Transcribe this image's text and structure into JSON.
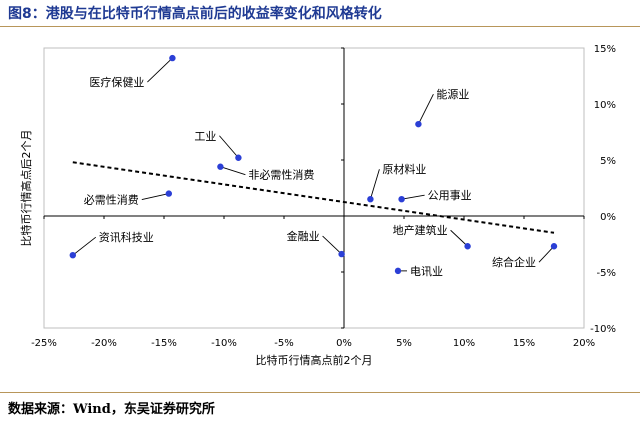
{
  "title": "图8：港股与在比特币行情高点前后的收益率变化和风格转化",
  "source": "数据来源：Wind，东吴证券研究所",
  "chart_data": {
    "type": "scatter",
    "xlabel": "比特币行情高点前2个月",
    "ylabel": "比特币行情高点后2个月",
    "xlim": [
      -0.25,
      0.2
    ],
    "ylim": [
      -0.1,
      0.15
    ],
    "x_ticks": [
      "-25%",
      "-20%",
      "-15%",
      "-10%",
      "-5%",
      "0%",
      "5%",
      "10%",
      "15%",
      "20%"
    ],
    "y_ticks": [
      "15%",
      "10%",
      "5%",
      "0%",
      "-5%",
      "-10%"
    ],
    "series_color": "#2b3fd6",
    "points": [
      {
        "label": "医疗保健业",
        "x": -0.143,
        "y": 0.141
      },
      {
        "label": "工业",
        "x": -0.088,
        "y": 0.052
      },
      {
        "label": "非必需性消费",
        "x": -0.103,
        "y": 0.044
      },
      {
        "label": "必需性消费",
        "x": -0.146,
        "y": 0.02
      },
      {
        "label": "资讯科技业",
        "x": -0.226,
        "y": -0.035
      },
      {
        "label": "金融业",
        "x": -0.002,
        "y": -0.034
      },
      {
        "label": "能源业",
        "x": 0.062,
        "y": 0.082
      },
      {
        "label": "原材料业",
        "x": 0.022,
        "y": 0.015
      },
      {
        "label": "公用事业",
        "x": 0.048,
        "y": 0.015
      },
      {
        "label": "地产建筑业",
        "x": 0.103,
        "y": -0.027
      },
      {
        "label": "电讯业",
        "x": 0.045,
        "y": -0.049
      },
      {
        "label": "综合企业",
        "x": 0.175,
        "y": -0.027
      }
    ],
    "trendline": {
      "style": "dashed",
      "x": [
        -0.226,
        0.175
      ],
      "y": [
        0.048,
        -0.015
      ]
    }
  }
}
